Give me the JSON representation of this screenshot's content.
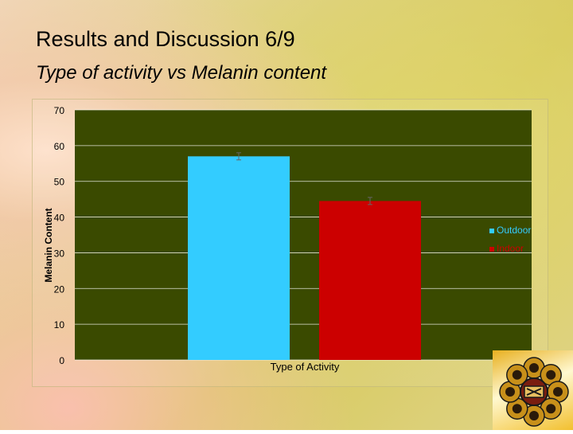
{
  "slide": {
    "title": "Results and Discussion 6/9",
    "subtitle": "Type of activity vs Melanin content"
  },
  "colors": {
    "plot_bg": "#3a4a00",
    "grid": "#ffffff",
    "outdoor": "#33ccff",
    "indoor": "#cc0000",
    "logo_gold": "#c8901a"
  },
  "icons": {
    "logo": "university-crest-logo"
  },
  "chart_data": {
    "type": "bar",
    "categories": [
      ""
    ],
    "series": [
      {
        "name": "Outdoor",
        "values": [
          57
        ],
        "error": [
          1
        ]
      },
      {
        "name": "Indoor",
        "values": [
          44.5
        ],
        "error": [
          1
        ]
      }
    ],
    "xlabel": "Type of Activity",
    "ylabel": "Melanin Content",
    "ylim": [
      0,
      70
    ],
    "yticks": [
      0,
      10,
      20,
      30,
      40,
      50,
      60,
      70
    ],
    "grid": true,
    "legend": "right"
  }
}
